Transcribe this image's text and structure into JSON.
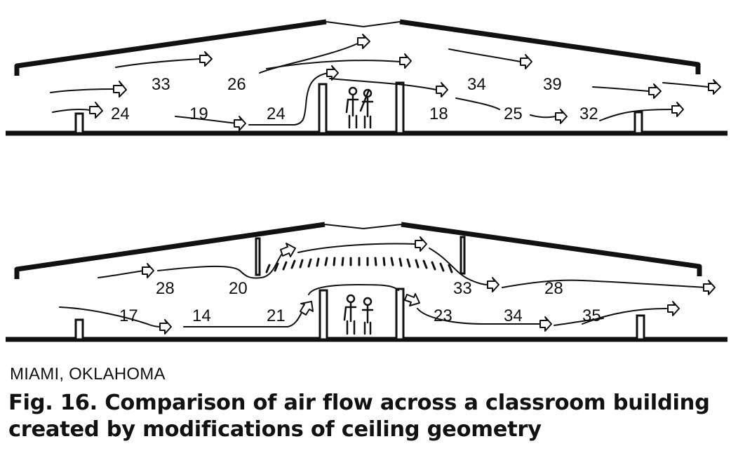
{
  "figure": {
    "location": "MIAMI, OKLAHOMA",
    "caption_line1": "Fig. 16. Comparison of air flow across a classroom building",
    "caption_line2": "created by modifications of ceiling geometry"
  },
  "diagrams": [
    {
      "id": "original-ceiling",
      "speed_labels": [
        "33",
        "26",
        "34",
        "39",
        "24",
        "19",
        "24",
        "18",
        "25",
        "32"
      ]
    },
    {
      "id": "modified-ceiling",
      "speed_labels": [
        "28",
        "20",
        "33",
        "28",
        "17",
        "14",
        "21",
        "23",
        "34",
        "35"
      ]
    }
  ]
}
